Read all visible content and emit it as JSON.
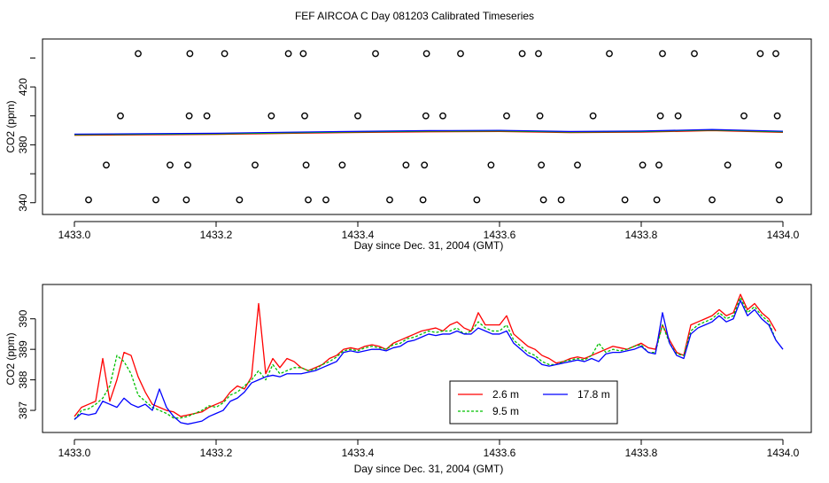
{
  "figure": {
    "title": "FEF AIRCOA C  Day 081203  Calibrated Timeseries"
  },
  "colors": {
    "series_2_6": "#ff0000",
    "series_9_5": "#00c000",
    "series_17_8": "#0000ff",
    "axis": "#000000",
    "flag_marker": "#000000"
  },
  "chart_data": [
    {
      "type": "scatter",
      "title": "",
      "xlabel": "Day since Dec. 31, 2004 (GMT)",
      "ylabel": "CO2 (ppm)",
      "xlim": [
        1433.0,
        1434.0
      ],
      "ylim": [
        338,
        447
      ],
      "xticks": [
        "1433.0",
        "1433.2",
        "1433.4",
        "1433.6",
        "1433.8",
        "1434.0"
      ],
      "yticks": [
        "340",
        "380",
        "420"
      ],
      "grid": false,
      "baseline_series": {
        "name": "",
        "x": [
          1433.0,
          1433.1,
          1433.2,
          1433.3,
          1433.4,
          1433.5,
          1433.6,
          1433.7,
          1433.8,
          1433.9,
          1434.0
        ],
        "y": [
          387.0,
          387.3,
          387.6,
          388.3,
          388.9,
          389.4,
          389.6,
          388.8,
          389.1,
          390.2,
          389.0
        ]
      },
      "flag_points": {
        "marker": "open-circle",
        "x": [
          1433.02,
          1433.045,
          1433.065,
          1433.09,
          1433.115,
          1433.135,
          1433.158,
          1433.16,
          1433.162,
          1433.163,
          1433.187,
          1433.212,
          1433.233,
          1433.255,
          1433.278,
          1433.302,
          1433.323,
          1433.325,
          1433.327,
          1433.33,
          1433.355,
          1433.378,
          1433.4,
          1433.425,
          1433.445,
          1433.468,
          1433.492,
          1433.494,
          1433.496,
          1433.497,
          1433.52,
          1433.545,
          1433.568,
          1433.588,
          1433.61,
          1433.632,
          1433.655,
          1433.657,
          1433.659,
          1433.662,
          1433.687,
          1433.71,
          1433.732,
          1433.755,
          1433.777,
          1433.802,
          1433.822,
          1433.825,
          1433.827,
          1433.83,
          1433.852,
          1433.875,
          1433.9,
          1433.922,
          1433.945,
          1433.968,
          1433.99,
          1433.992,
          1433.994,
          1433.995
        ],
        "y": [
          342,
          366,
          400,
          443,
          342,
          366,
          342,
          366,
          400,
          443,
          400,
          443,
          342,
          366,
          400,
          443,
          443,
          400,
          366,
          342,
          342,
          366,
          400,
          443,
          342,
          366,
          342,
          366,
          400,
          443,
          400,
          443,
          342,
          366,
          400,
          443,
          443,
          400,
          366,
          342,
          342,
          366,
          400,
          443,
          342,
          366,
          342,
          366,
          400,
          443,
          400,
          443,
          342,
          366,
          400,
          443,
          443,
          400,
          366,
          342
        ]
      }
    },
    {
      "type": "line",
      "title": "",
      "xlabel": "Day since Dec. 31, 2004 (GMT)",
      "ylabel": "CO2 (ppm)",
      "xlim": [
        1433.0,
        1434.0
      ],
      "ylim": [
        386.45,
        390.95
      ],
      "xticks": [
        "1433.0",
        "1433.2",
        "1433.4",
        "1433.6",
        "1433.8",
        "1434.0"
      ],
      "yticks": [
        "387",
        "388",
        "389",
        "390"
      ],
      "grid": false,
      "legend": {
        "position": "bottom-center",
        "entries": [
          "2.6 m",
          "9.5 m",
          "17.8 m"
        ]
      },
      "series": [
        {
          "name": "2.6 m",
          "x": [
            1433.0,
            1433.01,
            1433.02,
            1433.03,
            1433.04,
            1433.05,
            1433.06,
            1433.07,
            1433.08,
            1433.09,
            1433.1,
            1433.11,
            1433.12,
            1433.13,
            1433.14,
            1433.15,
            1433.16,
            1433.17,
            1433.18,
            1433.19,
            1433.2,
            1433.21,
            1433.22,
            1433.23,
            1433.24,
            1433.25,
            1433.26,
            1433.27,
            1433.28,
            1433.29,
            1433.3,
            1433.31,
            1433.32,
            1433.33,
            1433.34,
            1433.35,
            1433.36,
            1433.37,
            1433.38,
            1433.39,
            1433.4,
            1433.41,
            1433.42,
            1433.43,
            1433.44,
            1433.45,
            1433.46,
            1433.47,
            1433.48,
            1433.49,
            1433.5,
            1433.51,
            1433.52,
            1433.53,
            1433.54,
            1433.55,
            1433.56,
            1433.57,
            1433.58,
            1433.59,
            1433.6,
            1433.61,
            1433.62,
            1433.63,
            1433.64,
            1433.65,
            1433.66,
            1433.67,
            1433.68,
            1433.69,
            1433.7,
            1433.71,
            1433.72,
            1433.73,
            1433.74,
            1433.75,
            1433.76,
            1433.77,
            1433.78,
            1433.79,
            1433.8,
            1433.81,
            1433.82,
            1433.83,
            1433.84,
            1433.85,
            1433.86,
            1433.87,
            1433.88,
            1433.89,
            1433.9,
            1433.91,
            1433.92,
            1433.93,
            1433.94,
            1433.95,
            1433.96,
            1433.97,
            1433.98,
            1433.99
          ],
          "y": [
            386.8,
            387.1,
            387.2,
            387.3,
            388.7,
            387.3,
            388.0,
            388.9,
            388.8,
            388.1,
            387.6,
            387.2,
            387.1,
            387.0,
            386.95,
            386.8,
            386.85,
            386.9,
            386.95,
            387.1,
            387.2,
            387.3,
            387.6,
            387.8,
            387.7,
            388.1,
            390.5,
            388.2,
            388.7,
            388.4,
            388.7,
            388.6,
            388.4,
            388.3,
            388.4,
            388.5,
            388.7,
            388.8,
            389.0,
            389.05,
            389.0,
            389.1,
            389.15,
            389.1,
            389.0,
            389.2,
            389.3,
            389.4,
            389.5,
            389.6,
            389.65,
            389.7,
            389.6,
            389.8,
            389.9,
            389.7,
            389.6,
            390.2,
            389.8,
            389.8,
            389.8,
            390.1,
            389.5,
            389.3,
            389.1,
            389.0,
            388.8,
            388.7,
            388.55,
            388.6,
            388.7,
            388.75,
            388.7,
            388.8,
            388.9,
            389.0,
            389.1,
            389.05,
            389.0,
            389.1,
            389.2,
            389.05,
            389.0,
            389.8,
            389.3,
            388.9,
            388.8,
            389.8,
            389.9,
            390.0,
            390.1,
            390.3,
            390.1,
            390.2,
            390.8,
            390.3,
            390.5,
            390.2,
            390.0,
            389.6
          ]
        },
        {
          "name": "9.5 m",
          "x": [
            1433.0,
            1433.01,
            1433.02,
            1433.03,
            1433.04,
            1433.05,
            1433.06,
            1433.07,
            1433.08,
            1433.09,
            1433.1,
            1433.11,
            1433.12,
            1433.13,
            1433.14,
            1433.15,
            1433.16,
            1433.17,
            1433.18,
            1433.19,
            1433.2,
            1433.21,
            1433.22,
            1433.23,
            1433.24,
            1433.25,
            1433.26,
            1433.27,
            1433.28,
            1433.29,
            1433.3,
            1433.31,
            1433.32,
            1433.33,
            1433.34,
            1433.35,
            1433.36,
            1433.37,
            1433.38,
            1433.39,
            1433.4,
            1433.41,
            1433.42,
            1433.43,
            1433.44,
            1433.45,
            1433.46,
            1433.47,
            1433.48,
            1433.49,
            1433.5,
            1433.51,
            1433.52,
            1433.53,
            1433.54,
            1433.55,
            1433.56,
            1433.57,
            1433.58,
            1433.59,
            1433.6,
            1433.61,
            1433.62,
            1433.63,
            1433.64,
            1433.65,
            1433.66,
            1433.67,
            1433.68,
            1433.69,
            1433.7,
            1433.71,
            1433.72,
            1433.73,
            1433.74,
            1433.75,
            1433.76,
            1433.77,
            1433.78,
            1433.79,
            1433.8,
            1433.81,
            1433.82,
            1433.83,
            1433.84,
            1433.85,
            1433.86,
            1433.87,
            1433.88,
            1433.89,
            1433.9,
            1433.91,
            1433.92,
            1433.93,
            1433.94,
            1433.95,
            1433.96,
            1433.97,
            1433.98,
            1433.99
          ],
          "y": [
            386.7,
            387.0,
            387.05,
            387.2,
            387.4,
            387.8,
            388.8,
            388.6,
            388.2,
            387.5,
            387.3,
            387.1,
            387.0,
            386.9,
            386.75,
            386.75,
            386.8,
            386.9,
            387.0,
            387.15,
            387.1,
            387.25,
            387.5,
            387.6,
            387.8,
            388.0,
            388.3,
            388.0,
            388.5,
            388.2,
            388.3,
            388.4,
            388.4,
            388.3,
            388.35,
            388.5,
            388.6,
            388.75,
            388.95,
            389.0,
            388.95,
            389.05,
            389.1,
            389.05,
            389.0,
            389.15,
            389.2,
            389.35,
            389.4,
            389.5,
            389.6,
            389.55,
            389.6,
            389.6,
            389.7,
            389.5,
            389.6,
            389.9,
            389.7,
            389.6,
            389.6,
            389.8,
            389.3,
            389.1,
            388.9,
            388.8,
            388.6,
            388.5,
            388.5,
            388.6,
            388.65,
            388.7,
            388.65,
            388.8,
            389.2,
            388.9,
            389.0,
            388.95,
            389.0,
            389.1,
            389.15,
            388.9,
            388.9,
            389.8,
            389.2,
            388.85,
            388.8,
            389.6,
            389.8,
            389.9,
            390.0,
            390.2,
            390.0,
            390.1,
            390.7,
            390.2,
            390.4,
            390.1,
            389.9,
            389.3
          ]
        },
        {
          "name": "17.8 m",
          "x": [
            1433.0,
            1433.01,
            1433.02,
            1433.03,
            1433.04,
            1433.05,
            1433.06,
            1433.07,
            1433.08,
            1433.09,
            1433.1,
            1433.11,
            1433.12,
            1433.13,
            1433.14,
            1433.15,
            1433.16,
            1433.17,
            1433.18,
            1433.19,
            1433.2,
            1433.21,
            1433.22,
            1433.23,
            1433.24,
            1433.25,
            1433.26,
            1433.27,
            1433.28,
            1433.29,
            1433.3,
            1433.31,
            1433.32,
            1433.33,
            1433.34,
            1433.35,
            1433.36,
            1433.37,
            1433.38,
            1433.39,
            1433.4,
            1433.41,
            1433.42,
            1433.43,
            1433.44,
            1433.45,
            1433.46,
            1433.47,
            1433.48,
            1433.49,
            1433.5,
            1433.51,
            1433.52,
            1433.53,
            1433.54,
            1433.55,
            1433.56,
            1433.57,
            1433.58,
            1433.59,
            1433.6,
            1433.61,
            1433.62,
            1433.63,
            1433.64,
            1433.65,
            1433.66,
            1433.67,
            1433.68,
            1433.69,
            1433.7,
            1433.71,
            1433.72,
            1433.73,
            1433.74,
            1433.75,
            1433.76,
            1433.77,
            1433.78,
            1433.79,
            1433.8,
            1433.81,
            1433.82,
            1433.83,
            1433.84,
            1433.85,
            1433.86,
            1433.87,
            1433.88,
            1433.89,
            1433.9,
            1433.91,
            1433.92,
            1433.93,
            1433.94,
            1433.95,
            1433.96,
            1433.97,
            1433.98,
            1433.99,
            1434.0
          ],
          "y": [
            386.7,
            386.9,
            386.85,
            386.9,
            387.3,
            387.2,
            387.1,
            387.4,
            387.2,
            387.1,
            387.2,
            387.0,
            387.7,
            387.1,
            386.8,
            386.6,
            386.55,
            386.6,
            386.65,
            386.8,
            386.9,
            387.0,
            387.3,
            387.4,
            387.6,
            387.9,
            388.0,
            388.1,
            388.15,
            388.1,
            388.2,
            388.2,
            388.2,
            388.25,
            388.3,
            388.4,
            388.5,
            388.6,
            388.9,
            388.95,
            388.9,
            388.95,
            389.0,
            389.0,
            388.95,
            389.05,
            389.1,
            389.25,
            389.3,
            389.4,
            389.5,
            389.45,
            389.5,
            389.5,
            389.6,
            389.5,
            389.5,
            389.7,
            389.6,
            389.5,
            389.5,
            389.6,
            389.2,
            389.0,
            388.8,
            388.7,
            388.5,
            388.45,
            388.5,
            388.55,
            388.6,
            388.65,
            388.6,
            388.7,
            388.6,
            388.85,
            388.9,
            388.9,
            388.95,
            389.0,
            389.1,
            388.9,
            388.85,
            390.2,
            389.2,
            388.8,
            388.7,
            389.5,
            389.7,
            389.8,
            389.9,
            390.1,
            389.9,
            390.0,
            390.6,
            390.1,
            390.3,
            390.0,
            389.8,
            389.3,
            389.0
          ]
        }
      ]
    }
  ]
}
